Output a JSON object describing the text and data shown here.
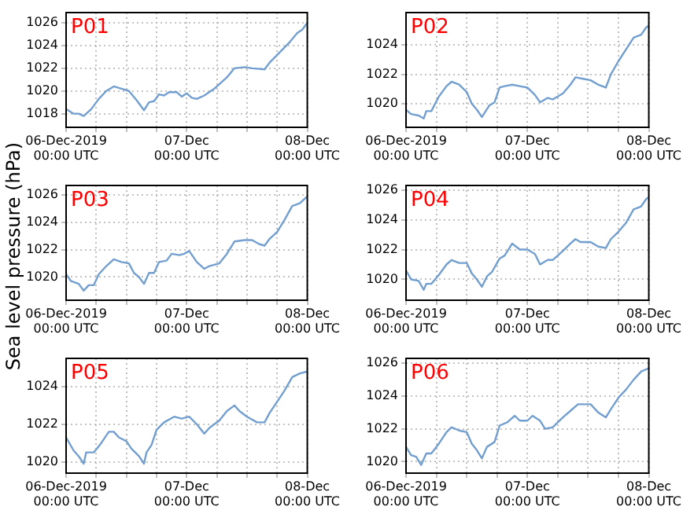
{
  "chart_data": [
    {
      "type": "line",
      "title": "P01",
      "color": "#729fcf",
      "grid": true,
      "xlim": [
        "2019-12-06T00:00",
        "2019-12-08T00:00"
      ],
      "ylim": [
        1016.8,
        1026.9
      ],
      "yticks": [
        1018,
        1020,
        1022,
        1024,
        1026
      ],
      "xticks": [
        {
          "value": "2019-12-06T00:00",
          "label": "06-Dec-2019\n00:00 UTC"
        },
        {
          "value": "2019-12-06T06:00",
          "label": null
        },
        {
          "value": "2019-12-06T12:00",
          "label": null
        },
        {
          "value": "2019-12-06T18:00",
          "label": null
        },
        {
          "value": "2019-12-07T00:00",
          "label": "07-Dec\n00:00 UTC"
        },
        {
          "value": "2019-12-07T06:00",
          "label": null
        },
        {
          "value": "2019-12-07T12:00",
          "label": null
        },
        {
          "value": "2019-12-07T18:00",
          "label": null
        },
        {
          "value": "2019-12-08T00:00",
          "label": "08-Dec\n00:00 UTC"
        }
      ],
      "x": [
        "2019-12-06T00:00",
        "2019-12-06T01:30",
        "2019-12-06T02:30",
        "2019-12-06T03:30",
        "2019-12-06T05:00",
        "2019-12-06T06:30",
        "2019-12-06T08:00",
        "2019-12-06T09:30",
        "2019-12-06T11:00",
        "2019-12-06T12:30",
        "2019-12-06T14:00",
        "2019-12-06T15:30",
        "2019-12-06T16:30",
        "2019-12-06T17:30",
        "2019-12-06T18:30",
        "2019-12-06T19:30",
        "2019-12-06T20:30",
        "2019-12-06T22:00",
        "2019-12-06T23:00",
        "2019-12-07T00:00",
        "2019-12-07T01:00",
        "2019-12-07T02:00",
        "2019-12-07T03:30",
        "2019-12-07T05:30",
        "2019-12-07T08:00",
        "2019-12-07T09:30",
        "2019-12-07T11:30",
        "2019-12-07T13:00",
        "2019-12-07T15:30",
        "2019-12-07T16:30",
        "2019-12-07T18:30",
        "2019-12-07T20:30",
        "2019-12-07T22:00",
        "2019-12-07T23:00",
        "2019-12-08T00:00"
      ],
      "values": [
        1018.4,
        1018.0,
        1018.0,
        1017.8,
        1018.4,
        1019.3,
        1020.0,
        1020.4,
        1020.2,
        1020.0,
        1019.2,
        1018.3,
        1019.0,
        1019.1,
        1019.7,
        1019.6,
        1019.9,
        1019.9,
        1019.5,
        1019.8,
        1019.4,
        1019.3,
        1019.6,
        1020.2,
        1021.2,
        1022.0,
        1022.1,
        1022.0,
        1021.9,
        1022.5,
        1023.4,
        1024.3,
        1025.1,
        1025.4,
        1026.0
      ]
    },
    {
      "type": "line",
      "title": "P02",
      "color": "#729fcf",
      "grid": true,
      "xlim": [
        "2019-12-06T00:00",
        "2019-12-08T00:00"
      ],
      "ylim": [
        1018.4,
        1026.2
      ],
      "yticks": [
        1020,
        1022,
        1024
      ],
      "xticks": [
        {
          "value": "2019-12-06T00:00",
          "label": "06-Dec-2019\n00:00 UTC"
        },
        {
          "value": "2019-12-06T06:00",
          "label": null
        },
        {
          "value": "2019-12-06T12:00",
          "label": null
        },
        {
          "value": "2019-12-06T18:00",
          "label": null
        },
        {
          "value": "2019-12-07T00:00",
          "label": "07-Dec\n00:00 UTC"
        },
        {
          "value": "2019-12-07T06:00",
          "label": null
        },
        {
          "value": "2019-12-07T12:00",
          "label": null
        },
        {
          "value": "2019-12-07T18:00",
          "label": null
        },
        {
          "value": "2019-12-08T00:00",
          "label": "08-Dec\n00:00 UTC"
        }
      ],
      "x": [
        "2019-12-06T00:00",
        "2019-12-06T01:00",
        "2019-12-06T02:30",
        "2019-12-06T03:30",
        "2019-12-06T04:00",
        "2019-12-06T05:00",
        "2019-12-06T06:30",
        "2019-12-06T08:00",
        "2019-12-06T09:00",
        "2019-12-06T10:30",
        "2019-12-06T12:00",
        "2019-12-06T13:00",
        "2019-12-06T14:00",
        "2019-12-06T15:00",
        "2019-12-06T16:30",
        "2019-12-06T17:30",
        "2019-12-06T18:30",
        "2019-12-06T19:30",
        "2019-12-06T21:00",
        "2019-12-06T22:30",
        "2019-12-07T00:00",
        "2019-12-07T01:30",
        "2019-12-07T02:30",
        "2019-12-07T04:00",
        "2019-12-07T05:00",
        "2019-12-07T07:00",
        "2019-12-07T08:30",
        "2019-12-07T09:30",
        "2019-12-07T11:00",
        "2019-12-07T12:30",
        "2019-12-07T14:00",
        "2019-12-07T15:30",
        "2019-12-07T16:30",
        "2019-12-07T18:00",
        "2019-12-07T19:30",
        "2019-12-07T21:00",
        "2019-12-07T22:30",
        "2019-12-07T23:30",
        "2019-12-08T00:00"
      ],
      "values": [
        1019.6,
        1019.3,
        1019.2,
        1019.0,
        1019.5,
        1019.5,
        1020.5,
        1021.2,
        1021.5,
        1021.3,
        1020.8,
        1020.0,
        1019.6,
        1019.1,
        1019.9,
        1020.1,
        1021.1,
        1021.2,
        1021.3,
        1021.2,
        1021.1,
        1020.6,
        1020.1,
        1020.4,
        1020.3,
        1020.7,
        1021.3,
        1021.8,
        1021.7,
        1021.6,
        1021.3,
        1021.1,
        1022.0,
        1022.9,
        1023.7,
        1024.5,
        1024.7,
        1025.2,
        1025.3
      ]
    },
    {
      "type": "line",
      "title": "P03",
      "ylabel": "Sea level pressure (hPa)",
      "color": "#729fcf",
      "grid": true,
      "xlim": [
        "2019-12-06T00:00",
        "2019-12-08T00:00"
      ],
      "ylim": [
        1018.3,
        1026.7
      ],
      "yticks": [
        1020,
        1022,
        1024,
        1026
      ],
      "xticks": [
        {
          "value": "2019-12-06T00:00",
          "label": "06-Dec-2019\n00:00 UTC"
        },
        {
          "value": "2019-12-06T06:00",
          "label": null
        },
        {
          "value": "2019-12-06T12:00",
          "label": null
        },
        {
          "value": "2019-12-06T18:00",
          "label": null
        },
        {
          "value": "2019-12-07T00:00",
          "label": "07-Dec\n00:00 UTC"
        },
        {
          "value": "2019-12-07T06:00",
          "label": null
        },
        {
          "value": "2019-12-07T12:00",
          "label": null
        },
        {
          "value": "2019-12-07T18:00",
          "label": null
        },
        {
          "value": "2019-12-08T00:00",
          "label": "08-Dec\n00:00 UTC"
        }
      ],
      "x": [
        "2019-12-06T00:00",
        "2019-12-06T01:00",
        "2019-12-06T02:30",
        "2019-12-06T03:30",
        "2019-12-06T04:30",
        "2019-12-06T05:30",
        "2019-12-06T06:30",
        "2019-12-06T08:00",
        "2019-12-06T09:30",
        "2019-12-06T11:00",
        "2019-12-06T12:30",
        "2019-12-06T13:30",
        "2019-12-06T14:30",
        "2019-12-06T15:30",
        "2019-12-06T16:30",
        "2019-12-06T17:30",
        "2019-12-06T18:30",
        "2019-12-06T20:00",
        "2019-12-06T21:00",
        "2019-12-06T22:30",
        "2019-12-06T23:30",
        "2019-12-07T00:30",
        "2019-12-07T02:00",
        "2019-12-07T03:30",
        "2019-12-07T04:30",
        "2019-12-07T06:30",
        "2019-12-07T08:00",
        "2019-12-07T09:30",
        "2019-12-07T11:30",
        "2019-12-07T13:00",
        "2019-12-07T14:30",
        "2019-12-07T15:30",
        "2019-12-07T16:30",
        "2019-12-07T18:00",
        "2019-12-07T19:30",
        "2019-12-07T21:00",
        "2019-12-07T22:30",
        "2019-12-08T00:00"
      ],
      "values": [
        1020.2,
        1019.7,
        1019.5,
        1019.0,
        1019.4,
        1019.4,
        1020.2,
        1020.8,
        1021.3,
        1021.1,
        1021.0,
        1020.3,
        1020.0,
        1019.5,
        1020.3,
        1020.3,
        1021.1,
        1021.2,
        1021.7,
        1021.6,
        1021.7,
        1021.9,
        1021.1,
        1020.6,
        1020.8,
        1021.0,
        1021.7,
        1022.6,
        1022.7,
        1022.7,
        1022.4,
        1022.3,
        1022.8,
        1023.3,
        1024.2,
        1025.2,
        1025.4,
        1025.9
      ]
    },
    {
      "type": "line",
      "title": "P04",
      "color": "#729fcf",
      "grid": true,
      "xlim": [
        "2019-12-06T00:00",
        "2019-12-08T00:00"
      ],
      "ylim": [
        1018.6,
        1026.3
      ],
      "yticks": [
        1020,
        1022,
        1024,
        1026
      ],
      "xticks": [
        {
          "value": "2019-12-06T00:00",
          "label": "06-Dec-2019\n00:00 UTC"
        },
        {
          "value": "2019-12-06T06:00",
          "label": null
        },
        {
          "value": "2019-12-06T12:00",
          "label": null
        },
        {
          "value": "2019-12-06T18:00",
          "label": null
        },
        {
          "value": "2019-12-07T00:00",
          "label": "07-Dec\n00:00 UTC"
        },
        {
          "value": "2019-12-07T06:00",
          "label": null
        },
        {
          "value": "2019-12-07T12:00",
          "label": null
        },
        {
          "value": "2019-12-07T18:00",
          "label": null
        },
        {
          "value": "2019-12-08T00:00",
          "label": "08-Dec\n00:00 UTC"
        }
      ],
      "x": [
        "2019-12-06T00:00",
        "2019-12-06T01:00",
        "2019-12-06T02:30",
        "2019-12-06T03:30",
        "2019-12-06T04:00",
        "2019-12-06T05:00",
        "2019-12-06T06:30",
        "2019-12-06T08:00",
        "2019-12-06T09:00",
        "2019-12-06T10:30",
        "2019-12-06T12:00",
        "2019-12-06T13:00",
        "2019-12-06T14:00",
        "2019-12-06T15:00",
        "2019-12-06T16:00",
        "2019-12-06T17:00",
        "2019-12-06T18:30",
        "2019-12-06T19:30",
        "2019-12-06T21:00",
        "2019-12-06T22:30",
        "2019-12-07T00:00",
        "2019-12-07T01:30",
        "2019-12-07T02:30",
        "2019-12-07T04:00",
        "2019-12-07T05:00",
        "2019-12-07T07:00",
        "2019-12-07T08:30",
        "2019-12-07T09:30",
        "2019-12-07T10:30",
        "2019-12-07T12:30",
        "2019-12-07T14:00",
        "2019-12-07T15:30",
        "2019-12-07T16:30",
        "2019-12-07T18:00",
        "2019-12-07T19:30",
        "2019-12-07T21:00",
        "2019-12-07T22:30",
        "2019-12-07T23:30",
        "2019-12-08T00:00"
      ],
      "values": [
        1020.6,
        1020.0,
        1019.9,
        1019.3,
        1019.7,
        1019.7,
        1020.3,
        1021.0,
        1021.3,
        1021.1,
        1021.1,
        1020.4,
        1020.0,
        1019.5,
        1020.2,
        1020.5,
        1021.4,
        1021.6,
        1022.4,
        1022.0,
        1022.0,
        1021.7,
        1021.0,
        1021.3,
        1021.3,
        1021.9,
        1022.4,
        1022.7,
        1022.5,
        1022.5,
        1022.2,
        1022.1,
        1022.7,
        1023.2,
        1023.8,
        1024.7,
        1024.9,
        1025.4,
        1025.5
      ]
    },
    {
      "type": "line",
      "title": "P05",
      "color": "#729fcf",
      "grid": true,
      "xlim": [
        "2019-12-06T00:00",
        "2019-12-08T00:00"
      ],
      "ylim": [
        1019.4,
        1025.5
      ],
      "yticks": [
        1020,
        1022,
        1024
      ],
      "xticks": [
        {
          "value": "2019-12-06T00:00",
          "label": "06-Dec-2019\n00:00 UTC"
        },
        {
          "value": "2019-12-06T06:00",
          "label": null
        },
        {
          "value": "2019-12-06T12:00",
          "label": null
        },
        {
          "value": "2019-12-06T18:00",
          "label": null
        },
        {
          "value": "2019-12-07T00:00",
          "label": "07-Dec\n00:00 UTC"
        },
        {
          "value": "2019-12-07T06:00",
          "label": null
        },
        {
          "value": "2019-12-07T12:00",
          "label": null
        },
        {
          "value": "2019-12-07T18:00",
          "label": null
        },
        {
          "value": "2019-12-08T00:00",
          "label": "08-Dec\n00:00 UTC"
        }
      ],
      "x": [
        "2019-12-06T00:00",
        "2019-12-06T01:30",
        "2019-12-06T02:30",
        "2019-12-06T03:30",
        "2019-12-06T04:00",
        "2019-12-06T05:30",
        "2019-12-06T07:00",
        "2019-12-06T08:30",
        "2019-12-06T09:30",
        "2019-12-06T10:30",
        "2019-12-06T12:00",
        "2019-12-06T13:00",
        "2019-12-06T14:30",
        "2019-12-06T15:30",
        "2019-12-06T16:00",
        "2019-12-06T17:00",
        "2019-12-06T18:00",
        "2019-12-06T19:30",
        "2019-12-06T21:30",
        "2019-12-06T23:00",
        "2019-12-07T00:30",
        "2019-12-07T02:00",
        "2019-12-07T03:30",
        "2019-12-07T04:30",
        "2019-12-07T06:30",
        "2019-12-07T08:00",
        "2019-12-07T09:30",
        "2019-12-07T10:30",
        "2019-12-07T12:00",
        "2019-12-07T14:00",
        "2019-12-07T15:30",
        "2019-12-07T16:30",
        "2019-12-07T18:00",
        "2019-12-07T19:30",
        "2019-12-07T21:00",
        "2019-12-07T22:30",
        "2019-12-08T00:00"
      ],
      "values": [
        1021.3,
        1020.6,
        1020.3,
        1019.9,
        1020.5,
        1020.5,
        1021.0,
        1021.6,
        1021.6,
        1021.3,
        1021.1,
        1020.7,
        1020.3,
        1019.9,
        1020.5,
        1020.9,
        1021.7,
        1022.1,
        1022.4,
        1022.3,
        1022.4,
        1022.0,
        1021.5,
        1021.8,
        1022.2,
        1022.7,
        1023.0,
        1022.7,
        1022.4,
        1022.1,
        1022.1,
        1022.6,
        1023.2,
        1023.8,
        1024.5,
        1024.7,
        1024.8
      ]
    },
    {
      "type": "line",
      "title": "P06",
      "color": "#729fcf",
      "grid": true,
      "xlim": [
        "2019-12-06T00:00",
        "2019-12-08T00:00"
      ],
      "ylim": [
        1019.3,
        1026.3
      ],
      "yticks": [
        1020,
        1022,
        1024,
        1026
      ],
      "xticks": [
        {
          "value": "2019-12-06T00:00",
          "label": "06-Dec-2019\n00:00 UTC"
        },
        {
          "value": "2019-12-06T06:00",
          "label": null
        },
        {
          "value": "2019-12-06T12:00",
          "label": null
        },
        {
          "value": "2019-12-06T18:00",
          "label": null
        },
        {
          "value": "2019-12-07T00:00",
          "label": "07-Dec\n00:00 UTC"
        },
        {
          "value": "2019-12-07T06:00",
          "label": null
        },
        {
          "value": "2019-12-07T12:00",
          "label": null
        },
        {
          "value": "2019-12-07T18:00",
          "label": null
        },
        {
          "value": "2019-12-08T00:00",
          "label": "08-Dec\n00:00 UTC"
        }
      ],
      "x": [
        "2019-12-06T00:00",
        "2019-12-06T01:00",
        "2019-12-06T02:00",
        "2019-12-06T03:00",
        "2019-12-06T04:00",
        "2019-12-06T05:00",
        "2019-12-06T06:30",
        "2019-12-06T08:00",
        "2019-12-06T09:00",
        "2019-12-06T10:30",
        "2019-12-06T12:00",
        "2019-12-06T13:00",
        "2019-12-06T14:00",
        "2019-12-06T15:00",
        "2019-12-06T16:00",
        "2019-12-06T17:30",
        "2019-12-06T18:30",
        "2019-12-06T20:00",
        "2019-12-06T21:30",
        "2019-12-06T22:30",
        "2019-12-07T00:00",
        "2019-12-07T01:00",
        "2019-12-07T02:30",
        "2019-12-07T03:30",
        "2019-12-07T05:00",
        "2019-12-07T07:00",
        "2019-12-07T08:30",
        "2019-12-07T10:00",
        "2019-12-07T11:00",
        "2019-12-07T12:30",
        "2019-12-07T14:00",
        "2019-12-07T15:30",
        "2019-12-07T16:30",
        "2019-12-07T18:00",
        "2019-12-07T19:30",
        "2019-12-07T21:00",
        "2019-12-07T22:30",
        "2019-12-08T00:00"
      ],
      "values": [
        1020.9,
        1020.4,
        1020.3,
        1019.8,
        1020.5,
        1020.5,
        1021.1,
        1021.8,
        1022.1,
        1021.9,
        1021.8,
        1021.1,
        1020.7,
        1020.2,
        1020.9,
        1021.2,
        1022.2,
        1022.4,
        1022.8,
        1022.5,
        1022.5,
        1022.8,
        1022.5,
        1022.0,
        1022.1,
        1022.7,
        1023.1,
        1023.5,
        1023.5,
        1023.5,
        1023.0,
        1022.7,
        1023.2,
        1023.9,
        1024.4,
        1025.0,
        1025.5,
        1025.7
      ]
    }
  ]
}
